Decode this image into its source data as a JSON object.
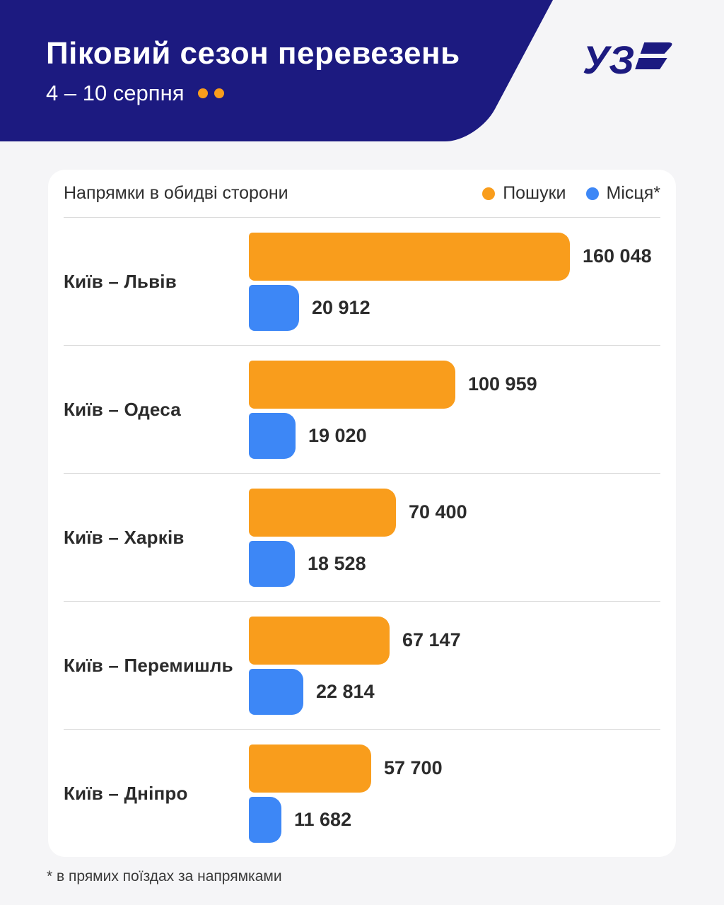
{
  "colors": {
    "navy": "#1C1A80",
    "orange": "#F99D1C",
    "blue": "#3D87F6",
    "page_bg": "#F5F5F7",
    "card_bg": "#FFFFFF",
    "divider": "#DBDBDB",
    "text_dark": "#2B2B2B"
  },
  "header": {
    "title": "Піковий сезон перевезень",
    "subtitle": "4 – 10 серпня",
    "logo_text": "УЗ"
  },
  "card": {
    "caption": "Напрямки в обидві сторони",
    "legend": [
      {
        "label": "Пошуки",
        "color": "#F99D1C"
      },
      {
        "label": "Місця*",
        "color": "#3D87F6"
      }
    ]
  },
  "chart_data": {
    "type": "bar",
    "orientation": "horizontal",
    "title": "Піковий сезон перевезень, 4 – 10 серпня",
    "caption": "Напрямки в обидві сторони",
    "categories": [
      "Київ – Львів",
      "Київ – Одеса",
      "Київ – Харків",
      "Київ – Перемишль",
      "Київ – Дніпро"
    ],
    "series": [
      {
        "name": "Пошуки",
        "color": "#F99D1C",
        "values": [
          160048,
          100959,
          70400,
          67147,
          57700
        ],
        "labels": [
          "160 048",
          "100 959",
          "70 400",
          "67 147",
          "57 700"
        ]
      },
      {
        "name": "Місця*",
        "color": "#3D87F6",
        "values": [
          20912,
          19020,
          18528,
          22814,
          11682
        ],
        "labels": [
          "20 912",
          "19 020",
          "18 528",
          "22 814",
          "11 682"
        ]
      }
    ],
    "xlim": [
      0,
      160048
    ],
    "legend_position": "top-right",
    "grid": false
  },
  "footnote": "* в прямих поїздах за напрямками"
}
